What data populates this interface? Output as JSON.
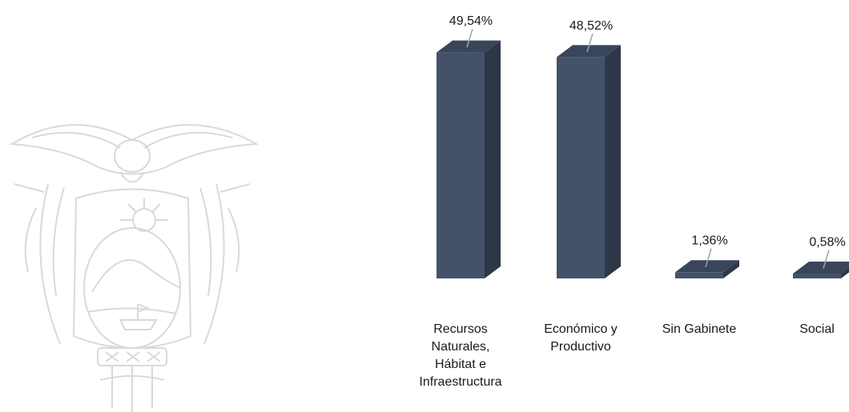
{
  "chart_data": {
    "type": "bar",
    "style": "3d-column",
    "categories": [
      [
        "Recursos",
        "Naturales,",
        "Hábitat e",
        "Infraestructura"
      ],
      [
        "Económico y",
        "Productivo"
      ],
      [
        "Sin Gabinete"
      ],
      [
        "Social"
      ]
    ],
    "values": [
      49.54,
      48.52,
      1.36,
      0.58
    ],
    "value_labels": [
      "49,54%",
      "48,52%",
      "1,36%",
      "0,58%"
    ],
    "colors": {
      "front": "#445269",
      "side": "#2d3748",
      "top": "#394559"
    },
    "grid": false,
    "legend": "none"
  },
  "watermark": {
    "icon": "coat-of-arms-icon"
  }
}
